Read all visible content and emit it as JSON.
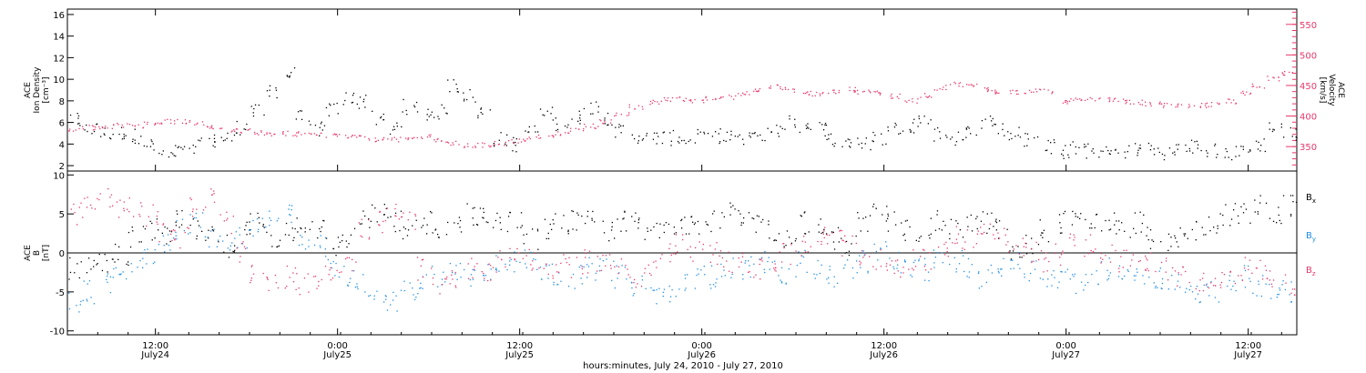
{
  "chart_data": [
    {
      "type": "scatter",
      "panel": "top",
      "title": "",
      "ylabel_left": [
        "ACE",
        "Ion Density",
        "[cm⁻³]"
      ],
      "ylabel_right": [
        "ACE",
        "Velocity",
        "[km/s]"
      ],
      "ylim_left": [
        1.5,
        16.5
      ],
      "yticks_left": [
        2,
        4,
        6,
        8,
        10,
        12,
        14,
        16
      ],
      "ylim_right": [
        310,
        575
      ],
      "yticks_right": [
        350,
        400,
        450,
        500,
        550
      ],
      "series": [
        {
          "name": "Ion Density",
          "axis": "left",
          "color": "#000000",
          "x_hours": [
            0,
            1,
            2,
            3,
            4,
            5,
            6,
            7,
            8,
            9,
            10,
            11,
            12,
            13,
            14,
            15,
            16,
            17,
            18,
            19,
            20,
            21,
            22,
            23,
            24,
            25,
            26,
            27,
            28,
            29,
            30,
            31,
            32,
            33,
            34,
            35,
            36,
            37,
            38,
            39,
            40,
            41,
            42,
            43,
            44,
            45,
            46,
            47,
            48,
            49,
            50,
            51,
            52,
            53,
            54,
            55,
            56,
            57,
            58,
            59,
            60,
            61,
            62,
            63,
            64,
            65,
            66,
            67,
            68,
            69,
            70,
            71,
            72,
            73,
            74,
            75,
            76,
            77,
            78,
            79,
            80,
            81
          ],
          "values": [
            6.2,
            5.4,
            5.0,
            5.1,
            4.8,
            3.8,
            3.0,
            3.3,
            3.9,
            4.3,
            4.6,
            5.6,
            7.0,
            9.0,
            10.5,
            6.5,
            5.4,
            7.2,
            8.3,
            8.0,
            6.4,
            5.4,
            7.5,
            6.8,
            7.0,
            9.5,
            8.5,
            7.0,
            4.5,
            4.0,
            5.2,
            6.8,
            6.0,
            6.5,
            7.5,
            6.5,
            5.2,
            4.8,
            4.6,
            4.6,
            4.5,
            4.7,
            4.8,
            4.6,
            4.5,
            5.0,
            5.3,
            6.0,
            5.8,
            5.5,
            4.5,
            4.2,
            4.0,
            4.6,
            5.5,
            5.8,
            6.3,
            5.0,
            4.6,
            5.3,
            6.0,
            5.5,
            5.0,
            4.5,
            3.8,
            3.3,
            3.6,
            3.4,
            3.2,
            3.4,
            3.6,
            3.5,
            3.3,
            3.5,
            3.8,
            3.4,
            3.2,
            3.5,
            4.0,
            5.5,
            5.0,
            4.6
          ]
        },
        {
          "name": "Velocity",
          "axis": "right",
          "color": "#e8386a",
          "x_hours": [
            0,
            1,
            2,
            3,
            4,
            5,
            6,
            7,
            8,
            9,
            10,
            11,
            12,
            13,
            14,
            15,
            16,
            17,
            18,
            19,
            20,
            21,
            22,
            23,
            24,
            25,
            26,
            27,
            28,
            29,
            30,
            31,
            32,
            33,
            34,
            35,
            36,
            37,
            38,
            39,
            40,
            41,
            42,
            43,
            44,
            45,
            46,
            47,
            48,
            49,
            50,
            51,
            52,
            53,
            54,
            55,
            56,
            57,
            58,
            59,
            60,
            61,
            62,
            63,
            64,
            65,
            66,
            67,
            68,
            69,
            70,
            71,
            72,
            73,
            74,
            75,
            76,
            77,
            78,
            79,
            80,
            81
          ],
          "values": [
            380,
            382,
            383,
            386,
            384,
            388,
            392,
            392,
            390,
            384,
            378,
            376,
            373,
            372,
            372,
            371,
            370,
            369,
            367,
            365,
            363,
            362,
            364,
            368,
            360,
            356,
            352,
            353,
            356,
            360,
            363,
            367,
            372,
            378,
            384,
            392,
            404,
            416,
            423,
            427,
            428,
            426,
            429,
            432,
            438,
            445,
            448,
            444,
            438,
            437,
            440,
            444,
            441,
            439,
            433,
            426,
            435,
            447,
            453,
            450,
            445,
            440,
            440,
            441,
            441,
            424,
            430,
            430,
            428,
            425,
            423,
            421,
            419,
            418,
            418,
            420,
            425,
            438,
            450,
            462,
            470,
            478
          ]
        }
      ]
    },
    {
      "type": "scatter",
      "panel": "bottom",
      "title": "",
      "ylabel": [
        "ACE",
        "B",
        "[nT]"
      ],
      "ylim": [
        -10.5,
        10.5
      ],
      "yticks": [
        -10,
        -5,
        0,
        5,
        10
      ],
      "legend_position": "right",
      "xlabel": "hours:minutes, July 24, 2010 - July 27, 2010",
      "x_range_hours": [
        0,
        81
      ],
      "x_ticks": [
        {
          "label": "12:00",
          "sub": "July24"
        },
        {
          "label": "0:00",
          "sub": "July25"
        },
        {
          "label": "12:00",
          "sub": "July25"
        },
        {
          "label": "0:00",
          "sub": "July26"
        },
        {
          "label": "12:00",
          "sub": "July26"
        },
        {
          "label": "0:00",
          "sub": "July27"
        },
        {
          "label": "12:00",
          "sub": "July27"
        }
      ],
      "x_tick_hours": [
        5.8,
        17.8,
        29.8,
        41.8,
        53.8,
        65.8,
        77.8
      ],
      "series": [
        {
          "name": "Bx",
          "name_main": "B",
          "name_sub": "x",
          "color": "#000000",
          "x_hours": [
            0,
            1,
            2,
            3,
            4,
            5,
            6,
            7,
            8,
            9,
            10,
            11,
            12,
            13,
            14,
            15,
            16,
            17,
            18,
            19,
            20,
            21,
            22,
            23,
            24,
            25,
            26,
            27,
            28,
            29,
            30,
            31,
            32,
            33,
            34,
            35,
            36,
            37,
            38,
            39,
            40,
            41,
            42,
            43,
            44,
            45,
            46,
            47,
            48,
            49,
            50,
            51,
            52,
            53,
            54,
            55,
            56,
            57,
            58,
            59,
            60,
            61,
            62,
            63,
            64,
            65,
            66,
            67,
            68,
            69,
            70,
            71,
            72,
            73,
            74,
            75,
            76,
            77,
            78,
            79,
            80,
            81
          ],
          "values": [
            -2,
            -2,
            -1,
            0,
            2,
            3,
            2,
            4,
            3,
            2,
            1,
            3,
            4,
            2,
            3,
            4,
            3,
            1,
            2,
            4,
            5,
            4,
            3,
            4,
            2,
            4,
            5,
            5,
            4,
            4,
            2,
            3,
            4,
            4,
            4,
            3,
            4,
            4,
            3,
            4,
            4,
            4,
            4,
            5,
            4,
            4,
            3,
            2,
            4,
            3,
            2,
            1,
            4,
            5,
            4,
            3,
            3,
            4,
            3,
            4,
            4,
            3,
            0,
            1,
            3,
            4,
            4,
            4,
            4,
            3,
            4,
            2,
            1,
            2,
            3,
            4,
            5,
            5,
            6,
            5,
            6,
            5
          ]
        },
        {
          "name": "By",
          "name_main": "B",
          "name_sub": "y",
          "color": "#1f8fe6",
          "x_hours": [
            0,
            1,
            2,
            3,
            4,
            5,
            6,
            7,
            8,
            9,
            10,
            11,
            12,
            13,
            14,
            15,
            16,
            17,
            18,
            19,
            20,
            21,
            22,
            23,
            24,
            25,
            26,
            27,
            28,
            29,
            30,
            31,
            32,
            33,
            34,
            35,
            36,
            37,
            38,
            39,
            40,
            41,
            42,
            43,
            44,
            45,
            46,
            47,
            48,
            49,
            50,
            51,
            52,
            53,
            54,
            55,
            56,
            57,
            58,
            59,
            60,
            61,
            62,
            63,
            64,
            65,
            66,
            67,
            68,
            69,
            70,
            71,
            72,
            73,
            74,
            75,
            76,
            77,
            78,
            79,
            80,
            81
          ],
          "values": [
            -6,
            -5,
            -4,
            -2,
            -1,
            0,
            1,
            3,
            4,
            2,
            1,
            2,
            3,
            4,
            5,
            2,
            1,
            -2,
            -3,
            -4,
            -5,
            -6,
            -5,
            -4,
            -3,
            -2,
            -3,
            -2,
            -1,
            -1,
            -1,
            -2,
            -3,
            -3,
            -2,
            -2,
            -3,
            -4,
            -5,
            -5,
            -4,
            -3,
            -3,
            -2,
            -2,
            -1,
            -2,
            -3,
            -1,
            -2,
            -3,
            -2,
            -1,
            0,
            -1,
            -2,
            -2,
            -1,
            -1,
            -2,
            -3,
            -2,
            -1,
            -2,
            -3,
            -3,
            -4,
            -3,
            -2,
            -2,
            -3,
            -3,
            -4,
            -4,
            -5,
            -5,
            -4,
            -3,
            -4,
            -5,
            -5,
            -5
          ]
        },
        {
          "name": "Bz",
          "name_main": "B",
          "name_sub": "z",
          "color": "#e8386a",
          "x_hours": [
            0,
            1,
            2,
            3,
            4,
            5,
            6,
            7,
            8,
            9,
            10,
            11,
            12,
            13,
            14,
            15,
            16,
            17,
            18,
            19,
            20,
            21,
            22,
            23,
            24,
            25,
            26,
            27,
            28,
            29,
            30,
            31,
            32,
            33,
            34,
            35,
            36,
            37,
            38,
            39,
            40,
            41,
            42,
            43,
            44,
            45,
            46,
            47,
            48,
            49,
            50,
            51,
            52,
            53,
            54,
            55,
            56,
            57,
            58,
            59,
            60,
            61,
            62,
            63,
            64,
            65,
            66,
            67,
            68,
            69,
            70,
            71,
            72,
            73,
            74,
            75,
            76,
            77,
            78,
            79,
            80,
            81
          ],
          "values": [
            5,
            7,
            7,
            6,
            6,
            5,
            3,
            2,
            6,
            7,
            4,
            0,
            -3,
            -4,
            -3,
            -4,
            -3,
            -2,
            -1,
            3,
            4,
            5,
            4,
            -2,
            -4,
            -3,
            -2,
            -2,
            -1,
            0,
            -1,
            -2,
            -1,
            -2,
            -1,
            -1,
            -2,
            -3,
            -2,
            0,
            1,
            0,
            0,
            -1,
            -1,
            -2,
            -1,
            0,
            1,
            2,
            2,
            1,
            0,
            -1,
            -2,
            -1,
            -1,
            1,
            2,
            2,
            3,
            2,
            1,
            0,
            -1,
            0,
            1,
            1,
            0,
            -1,
            -1,
            -1,
            -2,
            -3,
            -4,
            -4,
            -3,
            -2,
            -2,
            -3,
            -4,
            -5
          ]
        }
      ]
    }
  ]
}
